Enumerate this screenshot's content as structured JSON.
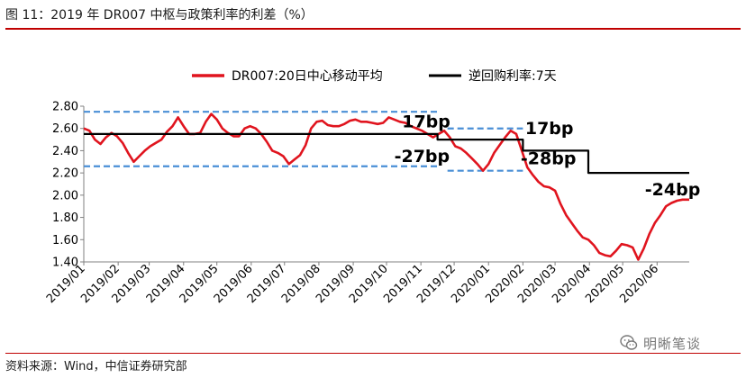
{
  "figure": {
    "title": "图 11：2019 年 DR007 中枢与政策利率的利差（%）",
    "source": "资料来源：Wind，中信证券研究部",
    "watermark": "明晰笔谈",
    "watermark_icon": "wechat-icon"
  },
  "colors": {
    "rule": "#c00000",
    "dr007": "#e0141e",
    "repo": "#000000",
    "band": "#4a8fd6"
  },
  "chart_data": {
    "type": "line",
    "title": "",
    "xlabel": "",
    "ylabel": "",
    "ylim": [
      1.4,
      2.8
    ],
    "yticks": [
      1.4,
      1.6,
      1.8,
      2.0,
      2.2,
      2.4,
      2.6,
      2.8
    ],
    "ytick_labels": [
      "1.40",
      "1.60",
      "1.80",
      "2.00",
      "2.20",
      "2.40",
      "2.60",
      "2.80"
    ],
    "x_start": "2019-01-01",
    "x_end": "2020-06-30",
    "xtick_labels": [
      "2019/01",
      "2019/02",
      "2019/03",
      "2019/04",
      "2019/05",
      "2019/06",
      "2019/07",
      "2019/08",
      "2019/09",
      "2019/10",
      "2019/11",
      "2019/12",
      "2020/01",
      "2020/02",
      "2020/03",
      "2020/04",
      "2020/05",
      "2020/06"
    ],
    "grid": false,
    "legend_position": "top",
    "series": [
      {
        "name": "DR007:20日中心移动平均",
        "style": "solid",
        "x": [
          "2019-01-01",
          "2019-01-06",
          "2019-01-11",
          "2019-01-16",
          "2019-01-21",
          "2019-01-26",
          "2019-01-31",
          "2019-02-05",
          "2019-02-10",
          "2019-02-15",
          "2019-02-20",
          "2019-02-25",
          "2019-03-02",
          "2019-03-07",
          "2019-03-12",
          "2019-03-17",
          "2019-03-22",
          "2019-03-27",
          "2019-04-01",
          "2019-04-06",
          "2019-04-11",
          "2019-04-16",
          "2019-04-21",
          "2019-04-26",
          "2019-05-01",
          "2019-05-06",
          "2019-05-11",
          "2019-05-16",
          "2019-05-21",
          "2019-05-26",
          "2019-05-31",
          "2019-06-05",
          "2019-06-10",
          "2019-06-15",
          "2019-06-20",
          "2019-06-25",
          "2019-06-30",
          "2019-07-05",
          "2019-07-10",
          "2019-07-15",
          "2019-07-20",
          "2019-07-25",
          "2019-07-30",
          "2019-08-04",
          "2019-08-09",
          "2019-08-14",
          "2019-08-19",
          "2019-08-24",
          "2019-08-29",
          "2019-09-03",
          "2019-09-08",
          "2019-09-13",
          "2019-09-18",
          "2019-09-23",
          "2019-09-28",
          "2019-10-03",
          "2019-10-08",
          "2019-10-13",
          "2019-10-18",
          "2019-10-23",
          "2019-10-28",
          "2019-11-02",
          "2019-11-07",
          "2019-11-12",
          "2019-11-17",
          "2019-11-22",
          "2019-11-27",
          "2019-12-02",
          "2019-12-07",
          "2019-12-12",
          "2019-12-17",
          "2019-12-22",
          "2019-12-27",
          "2020-01-01",
          "2020-01-06",
          "2020-01-11",
          "2020-01-16",
          "2020-01-21",
          "2020-01-26",
          "2020-01-31",
          "2020-02-05",
          "2020-02-10",
          "2020-02-15",
          "2020-02-20",
          "2020-02-25",
          "2020-03-01",
          "2020-03-06",
          "2020-03-11",
          "2020-03-16",
          "2020-03-21",
          "2020-03-26",
          "2020-03-31",
          "2020-04-05",
          "2020-04-10",
          "2020-04-15",
          "2020-04-20",
          "2020-04-25",
          "2020-04-30",
          "2020-05-05",
          "2020-05-10",
          "2020-05-15",
          "2020-05-20",
          "2020-05-25",
          "2020-05-30",
          "2020-06-04",
          "2020-06-09",
          "2020-06-14",
          "2020-06-19",
          "2020-06-24",
          "2020-06-30"
        ],
        "values": [
          2.6,
          2.58,
          2.5,
          2.46,
          2.52,
          2.56,
          2.53,
          2.47,
          2.38,
          2.3,
          2.35,
          2.4,
          2.44,
          2.47,
          2.5,
          2.57,
          2.62,
          2.7,
          2.62,
          2.55,
          2.55,
          2.56,
          2.66,
          2.73,
          2.68,
          2.6,
          2.56,
          2.53,
          2.53,
          2.6,
          2.62,
          2.6,
          2.55,
          2.48,
          2.4,
          2.38,
          2.35,
          2.28,
          2.32,
          2.36,
          2.45,
          2.6,
          2.66,
          2.67,
          2.63,
          2.62,
          2.62,
          2.64,
          2.67,
          2.68,
          2.66,
          2.66,
          2.65,
          2.64,
          2.65,
          2.7,
          2.68,
          2.66,
          2.65,
          2.62,
          2.6,
          2.58,
          2.55,
          2.52,
          2.55,
          2.58,
          2.52,
          2.44,
          2.42,
          2.38,
          2.33,
          2.28,
          2.22,
          2.28,
          2.38,
          2.45,
          2.52,
          2.58,
          2.55,
          2.4,
          2.25,
          2.18,
          2.12,
          2.08,
          2.07,
          2.04,
          1.92,
          1.82,
          1.75,
          1.68,
          1.62,
          1.6,
          1.55,
          1.48,
          1.46,
          1.45,
          1.5,
          1.56,
          1.55,
          1.53,
          1.42,
          1.52,
          1.65,
          1.75,
          1.82,
          1.9,
          1.93,
          1.95,
          1.96,
          1.96
        ]
      },
      {
        "name": "逆回购利率:7天",
        "style": "step",
        "x": [
          "2019-01-01",
          "2019-11-16",
          "2019-11-16",
          "2020-02-01",
          "2020-02-01",
          "2020-03-31",
          "2020-03-31",
          "2020-06-30"
        ],
        "values": [
          2.55,
          2.55,
          2.5,
          2.5,
          2.4,
          2.4,
          2.2,
          2.2
        ]
      }
    ],
    "bands": [
      {
        "name": "upper-band-2019",
        "x": [
          "2019-01-01",
          "2019-11-16"
        ],
        "y": 2.75
      },
      {
        "name": "lower-band-2019",
        "x": [
          "2019-01-01",
          "2019-11-16"
        ],
        "y": 2.26
      },
      {
        "name": "upper-band-2020",
        "x": [
          "2019-11-25",
          "2020-02-01"
        ],
        "y": 2.6
      },
      {
        "name": "lower-band-2020",
        "x": [
          "2019-11-25",
          "2020-02-01"
        ],
        "y": 2.22
      }
    ],
    "annotations": [
      {
        "text": "17bp",
        "x": "2019-10-15",
        "y": 2.61
      },
      {
        "text": "-27bp",
        "x": "2019-10-08",
        "y": 2.3
      },
      {
        "text": "17bp",
        "x": "2020-02-03",
        "y": 2.55
      },
      {
        "text": "-28bp",
        "x": "2020-01-30",
        "y": 2.28
      },
      {
        "text": "-24bp",
        "x": "2020-05-21",
        "y": 2.0
      }
    ]
  }
}
